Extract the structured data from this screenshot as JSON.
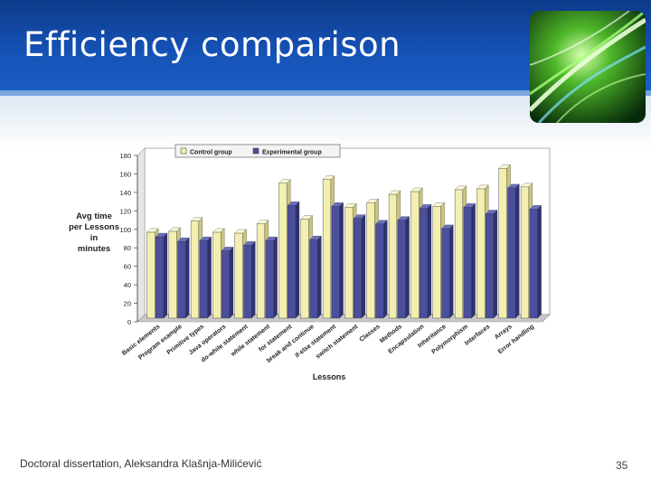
{
  "slide": {
    "title": "Efficiency comparison",
    "footer": "Doctoral dissertation, Aleksandra Klašnja-Milićević",
    "page_number": "35"
  },
  "logo": {
    "icon": "green-light-streaks-logo"
  },
  "chart_data": {
    "type": "bar",
    "xlabel": "Lessons",
    "ylabel": "Avg time per Lessons in minutes",
    "ylabel_lines": [
      "Avg time",
      "per Lessons",
      "in",
      "minutes"
    ],
    "ylim": [
      0,
      180
    ],
    "yticks": [
      0,
      20,
      40,
      60,
      80,
      100,
      120,
      140,
      160,
      180
    ],
    "grid": false,
    "legend_position": "top",
    "categories": [
      "Basic elements",
      "Program example",
      "Primitive types",
      "Java operators",
      "do-while statement",
      "while statement",
      "for statement",
      "break and continue",
      "if-else statement",
      "switch statement",
      "Classes",
      "Methods",
      "Encapsulation",
      "Inheritance",
      "Polymorphism",
      "Interfaces",
      "Arrays",
      "Error handling"
    ],
    "series": [
      {
        "name": "Control group",
        "color": "#f2efb0",
        "values": [
          93,
          94,
          105,
          93,
          92,
          102,
          146,
          107,
          150,
          120,
          125,
          134,
          137,
          121,
          139,
          140,
          162,
          142
        ]
      },
      {
        "name": "Experimental group",
        "color": "#4b4f9c",
        "values": [
          88,
          83,
          84,
          73,
          79,
          84,
          122,
          85,
          121,
          108,
          102,
          106,
          119,
          97,
          120,
          113,
          141,
          118
        ]
      }
    ]
  }
}
